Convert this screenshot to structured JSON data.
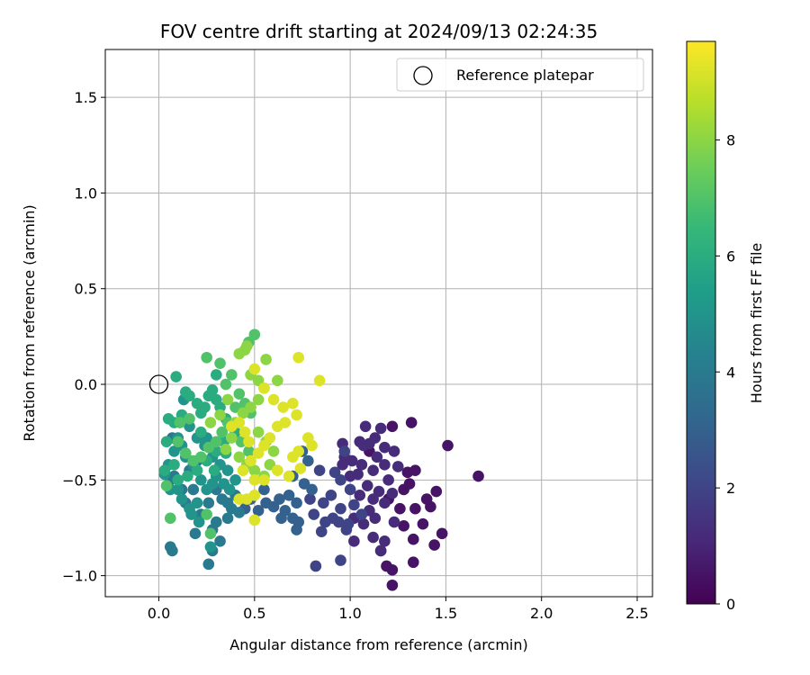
{
  "chart_data": {
    "type": "scatter",
    "title": "FOV centre drift starting at 2024/09/13 02:24:35",
    "xlabel": "Angular distance from reference (arcmin)",
    "ylabel": "Rotation from reference (arcmin)",
    "xlim": [
      -0.28,
      2.58
    ],
    "ylim": [
      -1.11,
      1.75
    ],
    "xticks": [
      0.0,
      0.5,
      1.0,
      1.5,
      2.0,
      2.5
    ],
    "xtick_labels": [
      "0.0",
      "0.5",
      "1.0",
      "1.5",
      "2.0",
      "2.5"
    ],
    "yticks": [
      -1.0,
      -0.5,
      0.0,
      0.5,
      1.0,
      1.5
    ],
    "ytick_labels": [
      "−1.0",
      "−0.5",
      "0.0",
      "0.5",
      "1.0",
      "1.5"
    ],
    "grid": true,
    "legend": {
      "position": "top-right",
      "entries": [
        {
          "label": "Reference platepar",
          "marker": "open-circle"
        }
      ]
    },
    "reference_point": {
      "x": 0.0,
      "y": 0.0
    },
    "colorbar": {
      "label": "Hours from first FF file",
      "range": [
        0,
        9.7
      ],
      "ticks": [
        0,
        2,
        4,
        6,
        8
      ],
      "tick_labels": [
        "0",
        "2",
        "4",
        "6",
        "8"
      ],
      "colormap": "viridis",
      "colors": [
        "#440154",
        "#482878",
        "#3e4989",
        "#31688e",
        "#26828e",
        "#1f9e89",
        "#35b779",
        "#6ece58",
        "#b5de2b",
        "#fde725"
      ]
    },
    "series": [
      {
        "hours": 0.5,
        "points": [
          [
            1.22,
            -0.22
          ],
          [
            1.32,
            -0.2
          ],
          [
            1.51,
            -0.32
          ],
          [
            1.67,
            -0.48
          ],
          [
            1.45,
            -0.56
          ],
          [
            1.48,
            -0.78
          ],
          [
            1.44,
            -0.84
          ],
          [
            1.33,
            -0.81
          ],
          [
            1.33,
            -0.93
          ],
          [
            1.38,
            -0.73
          ],
          [
            1.42,
            -0.64
          ],
          [
            1.34,
            -0.65
          ],
          [
            1.4,
            -0.6
          ],
          [
            1.28,
            -0.55
          ],
          [
            1.31,
            -0.52
          ],
          [
            1.3,
            -0.46
          ],
          [
            1.34,
            -0.45
          ],
          [
            1.22,
            -1.05
          ],
          [
            1.19,
            -0.95
          ],
          [
            1.22,
            -0.97
          ],
          [
            1.16,
            -0.87
          ],
          [
            1.2,
            -0.6
          ],
          [
            1.26,
            -0.65
          ],
          [
            1.28,
            -0.74
          ],
          [
            1.1,
            -0.35
          ]
        ]
      },
      {
        "hours": 1.2,
        "points": [
          [
            1.08,
            -0.22
          ],
          [
            1.16,
            -0.23
          ],
          [
            1.13,
            -0.28
          ],
          [
            1.1,
            -0.31
          ],
          [
            0.96,
            -0.31
          ],
          [
            1.05,
            -0.3
          ],
          [
            1.07,
            -0.32
          ],
          [
            1.18,
            -0.33
          ],
          [
            1.23,
            -0.35
          ],
          [
            1.14,
            -0.38
          ],
          [
            0.97,
            -0.38
          ],
          [
            1.01,
            -0.4
          ],
          [
            1.06,
            -0.42
          ],
          [
            1.18,
            -0.42
          ],
          [
            1.25,
            -0.43
          ],
          [
            1.04,
            -0.47
          ],
          [
            1.12,
            -0.45
          ],
          [
            1.2,
            -0.5
          ],
          [
            1.09,
            -0.53
          ],
          [
            1.15,
            -0.56
          ],
          [
            1.05,
            -0.58
          ],
          [
            1.12,
            -0.6
          ],
          [
            1.18,
            -0.62
          ],
          [
            1.1,
            -0.66
          ],
          [
            1.13,
            -0.7
          ],
          [
            1.02,
            -0.7
          ],
          [
            1.07,
            -0.73
          ],
          [
            1.23,
            -0.72
          ],
          [
            1.12,
            -0.8
          ],
          [
            1.18,
            -0.82
          ],
          [
            1.16,
            -0.87
          ],
          [
            1.02,
            -0.82
          ],
          [
            1.0,
            -0.48
          ],
          [
            0.96,
            -0.42
          ],
          [
            1.22,
            -0.57
          ]
        ]
      },
      {
        "hours": 2.0,
        "points": [
          [
            0.97,
            -0.35
          ],
          [
            0.92,
            -0.46
          ],
          [
            0.95,
            -0.5
          ],
          [
            1.0,
            -0.55
          ],
          [
            0.9,
            -0.58
          ],
          [
            1.02,
            -0.63
          ],
          [
            0.95,
            -0.65
          ],
          [
            1.06,
            -0.68
          ],
          [
            0.99,
            -0.73
          ],
          [
            0.91,
            -0.7
          ],
          [
            0.94,
            -0.72
          ],
          [
            0.98,
            -0.76
          ],
          [
            0.95,
            -0.92
          ],
          [
            0.82,
            -0.95
          ],
          [
            0.84,
            -0.45
          ],
          [
            0.86,
            -0.62
          ],
          [
            0.79,
            -0.6
          ],
          [
            0.81,
            -0.68
          ],
          [
            0.87,
            -0.72
          ],
          [
            0.85,
            -0.77
          ]
        ]
      },
      {
        "hours": 3.0,
        "points": [
          [
            0.7,
            -0.48
          ],
          [
            0.76,
            -0.52
          ],
          [
            0.8,
            -0.55
          ],
          [
            0.68,
            -0.58
          ],
          [
            0.72,
            -0.62
          ],
          [
            0.63,
            -0.6
          ],
          [
            0.6,
            -0.64
          ],
          [
            0.66,
            -0.66
          ],
          [
            0.73,
            -0.72
          ],
          [
            0.64,
            -0.7
          ],
          [
            0.56,
            -0.62
          ],
          [
            0.52,
            -0.66
          ],
          [
            0.48,
            -0.6
          ],
          [
            0.55,
            -0.55
          ],
          [
            0.45,
            -0.65
          ],
          [
            0.7,
            -0.7
          ],
          [
            0.72,
            -0.76
          ],
          [
            0.75,
            -0.35
          ],
          [
            0.78,
            -0.4
          ]
        ]
      },
      {
        "hours": 4.0,
        "points": [
          [
            0.38,
            -0.65
          ],
          [
            0.36,
            -0.7
          ],
          [
            0.42,
            -0.67
          ],
          [
            0.33,
            -0.6
          ],
          [
            0.3,
            -0.55
          ],
          [
            0.26,
            -0.62
          ],
          [
            0.22,
            -0.68
          ],
          [
            0.3,
            -0.72
          ],
          [
            0.28,
            -0.76
          ],
          [
            0.32,
            -0.82
          ],
          [
            0.28,
            -0.87
          ],
          [
            0.26,
            -0.94
          ],
          [
            0.19,
            -0.78
          ],
          [
            0.14,
            -0.62
          ],
          [
            0.18,
            -0.55
          ],
          [
            0.12,
            -0.55
          ],
          [
            0.08,
            -0.48
          ],
          [
            0.06,
            -0.5
          ],
          [
            0.07,
            -0.28
          ],
          [
            0.06,
            -0.85
          ],
          [
            0.07,
            -0.87
          ],
          [
            0.4,
            -0.58
          ],
          [
            0.36,
            -0.62
          ],
          [
            0.2,
            -0.4
          ],
          [
            0.16,
            -0.45
          ]
        ]
      },
      {
        "hours": 5.0,
        "points": [
          [
            0.2,
            -0.62
          ],
          [
            0.16,
            -0.65
          ],
          [
            0.12,
            -0.6
          ],
          [
            0.1,
            -0.55
          ],
          [
            0.06,
            -0.55
          ],
          [
            0.03,
            -0.47
          ],
          [
            0.05,
            -0.42
          ],
          [
            0.08,
            -0.35
          ],
          [
            0.1,
            -0.28
          ],
          [
            0.12,
            -0.32
          ],
          [
            0.14,
            -0.38
          ],
          [
            0.18,
            -0.42
          ],
          [
            0.22,
            -0.5
          ],
          [
            0.25,
            -0.55
          ],
          [
            0.28,
            -0.52
          ],
          [
            0.3,
            -0.48
          ],
          [
            0.34,
            -0.52
          ],
          [
            0.37,
            -0.55
          ],
          [
            0.4,
            -0.5
          ],
          [
            0.36,
            -0.45
          ],
          [
            0.32,
            -0.42
          ],
          [
            0.28,
            -0.38
          ],
          [
            0.24,
            -0.32
          ],
          [
            0.2,
            -0.28
          ],
          [
            0.16,
            -0.22
          ],
          [
            0.13,
            -0.08
          ],
          [
            0.27,
            -0.85
          ],
          [
            0.21,
            -0.72
          ],
          [
            0.17,
            -0.68
          ],
          [
            0.25,
            -0.28
          ]
        ]
      },
      {
        "hours": 6.0,
        "points": [
          [
            0.05,
            -0.18
          ],
          [
            0.08,
            -0.2
          ],
          [
            0.12,
            -0.16
          ],
          [
            0.14,
            -0.04
          ],
          [
            0.16,
            -0.06
          ],
          [
            0.2,
            -0.1
          ],
          [
            0.22,
            -0.15
          ],
          [
            0.24,
            -0.12
          ],
          [
            0.26,
            -0.06
          ],
          [
            0.28,
            -0.03
          ],
          [
            0.3,
            -0.08
          ],
          [
            0.32,
            -0.12
          ],
          [
            0.35,
            -0.18
          ],
          [
            0.38,
            -0.22
          ],
          [
            0.4,
            -0.25
          ],
          [
            0.34,
            -0.3
          ],
          [
            0.3,
            -0.35
          ],
          [
            0.25,
            -0.4
          ],
          [
            0.2,
            -0.45
          ],
          [
            0.15,
            -0.48
          ],
          [
            0.1,
            -0.5
          ],
          [
            0.08,
            -0.42
          ],
          [
            0.04,
            -0.3
          ],
          [
            0.03,
            -0.45
          ],
          [
            0.09,
            0.04
          ],
          [
            0.3,
            0.05
          ],
          [
            0.29,
            -0.45
          ],
          [
            0.22,
            -0.25
          ],
          [
            0.35,
            -0.36
          ]
        ]
      },
      {
        "hours": 7.0,
        "points": [
          [
            0.25,
            0.14
          ],
          [
            0.32,
            0.11
          ],
          [
            0.38,
            0.05
          ],
          [
            0.35,
            0.0
          ],
          [
            0.42,
            -0.05
          ],
          [
            0.45,
            -0.1
          ],
          [
            0.48,
            -0.15
          ],
          [
            0.4,
            -0.12
          ],
          [
            0.36,
            -0.2
          ],
          [
            0.33,
            -0.25
          ],
          [
            0.3,
            -0.3
          ],
          [
            0.26,
            -0.33
          ],
          [
            0.22,
            -0.38
          ],
          [
            0.18,
            -0.4
          ],
          [
            0.14,
            -0.36
          ],
          [
            0.1,
            -0.3
          ],
          [
            0.11,
            -0.2
          ],
          [
            0.16,
            -0.18
          ],
          [
            0.5,
            0.26
          ],
          [
            0.47,
            0.22
          ],
          [
            0.25,
            -0.68
          ],
          [
            0.27,
            -0.78
          ],
          [
            0.06,
            -0.7
          ],
          [
            0.04,
            -0.53
          ],
          [
            0.43,
            -0.3
          ],
          [
            0.47,
            -0.35
          ]
        ]
      },
      {
        "hours": 8.0,
        "points": [
          [
            0.45,
            0.18
          ],
          [
            0.42,
            0.16
          ],
          [
            0.46,
            0.2
          ],
          [
            0.48,
            0.05
          ],
          [
            0.52,
            0.02
          ],
          [
            0.55,
            -0.02
          ],
          [
            0.52,
            -0.08
          ],
          [
            0.48,
            -0.12
          ],
          [
            0.44,
            -0.15
          ],
          [
            0.4,
            -0.2
          ],
          [
            0.38,
            -0.28
          ],
          [
            0.35,
            -0.34
          ],
          [
            0.42,
            -0.38
          ],
          [
            0.46,
            -0.42
          ],
          [
            0.5,
            -0.45
          ],
          [
            0.55,
            -0.48
          ],
          [
            0.58,
            -0.42
          ],
          [
            0.6,
            -0.35
          ],
          [
            0.56,
            -0.3
          ],
          [
            0.52,
            -0.25
          ],
          [
            0.36,
            -0.08
          ],
          [
            0.32,
            -0.16
          ],
          [
            0.56,
            0.13
          ],
          [
            0.27,
            -0.2
          ],
          [
            0.62,
            0.02
          ]
        ]
      },
      {
        "hours": 9.2,
        "points": [
          [
            0.73,
            0.14
          ],
          [
            0.84,
            0.02
          ],
          [
            0.5,
            0.08
          ],
          [
            0.55,
            -0.02
          ],
          [
            0.6,
            -0.08
          ],
          [
            0.65,
            -0.12
          ],
          [
            0.7,
            -0.1
          ],
          [
            0.72,
            -0.16
          ],
          [
            0.66,
            -0.2
          ],
          [
            0.62,
            -0.22
          ],
          [
            0.58,
            -0.28
          ],
          [
            0.55,
            -0.32
          ],
          [
            0.52,
            -0.36
          ],
          [
            0.48,
            -0.4
          ],
          [
            0.44,
            -0.45
          ],
          [
            0.5,
            -0.5
          ],
          [
            0.55,
            -0.5
          ],
          [
            0.62,
            -0.45
          ],
          [
            0.68,
            -0.48
          ],
          [
            0.7,
            -0.38
          ],
          [
            0.73,
            -0.35
          ],
          [
            0.78,
            -0.28
          ],
          [
            0.8,
            -0.32
          ],
          [
            0.74,
            -0.44
          ],
          [
            0.45,
            -0.25
          ],
          [
            0.42,
            -0.2
          ],
          [
            0.5,
            -0.58
          ],
          [
            0.46,
            -0.6
          ],
          [
            0.5,
            -0.71
          ],
          [
            0.42,
            -0.6
          ],
          [
            0.38,
            -0.22
          ],
          [
            0.47,
            -0.3
          ]
        ]
      }
    ]
  }
}
